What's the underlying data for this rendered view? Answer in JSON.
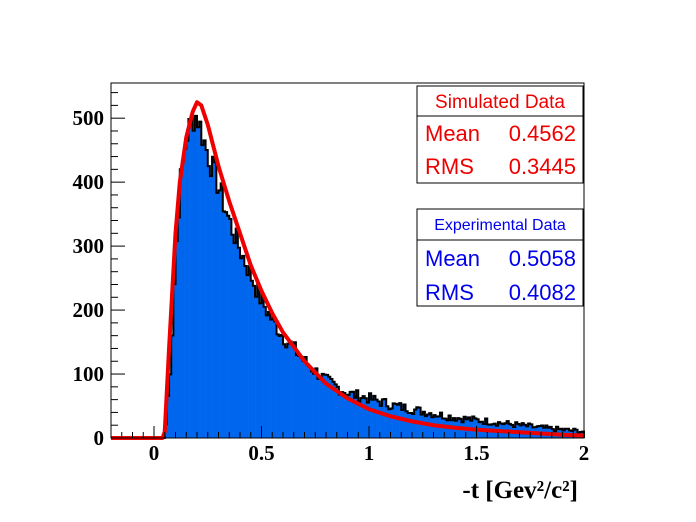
{
  "chart_data": {
    "type": "histogram",
    "xlabel": "-t [Gev²/c²]",
    "ylabel": "",
    "xlim": [
      -0.2,
      2.0
    ],
    "ylim": [
      0,
      555
    ],
    "x_ticks": [
      "0",
      "0.5",
      "1",
      "1.5",
      "2"
    ],
    "y_ticks": [
      "0",
      "100",
      "200",
      "300",
      "400",
      "500"
    ],
    "grid": false,
    "series": [
      {
        "name": "Experimental Data",
        "render": "filled-histogram",
        "fill_color": "#0066ee",
        "line_color": "#000000",
        "stats": {
          "mean_label": "Mean",
          "mean": "0.5058",
          "rms_label": "RMS",
          "rms": "0.4082"
        },
        "x": [
          0.0,
          0.05,
          0.08,
          0.1,
          0.12,
          0.15,
          0.18,
          0.2,
          0.22,
          0.25,
          0.3,
          0.35,
          0.4,
          0.45,
          0.5,
          0.55,
          0.6,
          0.7,
          0.8,
          0.9,
          1.0,
          1.1,
          1.2,
          1.3,
          1.4,
          1.5,
          1.6,
          1.7,
          1.8,
          1.9,
          2.0
        ],
        "values": [
          0,
          0,
          130,
          280,
          390,
          470,
          500,
          505,
          480,
          445,
          395,
          340,
          295,
          255,
          215,
          185,
          160,
          120,
          90,
          70,
          62,
          52,
          45,
          38,
          32,
          28,
          24,
          20,
          16,
          13,
          10
        ]
      },
      {
        "name": "Simulated Data",
        "render": "line",
        "line_color": "#ee0000",
        "stats": {
          "mean_label": "Mean",
          "mean": "0.4562",
          "rms_label": "RMS",
          "rms": "0.3445"
        },
        "x": [
          -0.2,
          0.04,
          0.05,
          0.07,
          0.09,
          0.1,
          0.12,
          0.15,
          0.18,
          0.2,
          0.22,
          0.25,
          0.3,
          0.35,
          0.4,
          0.45,
          0.5,
          0.55,
          0.6,
          0.7,
          0.8,
          0.9,
          1.0,
          1.1,
          1.2,
          1.3,
          1.4,
          1.5,
          1.6,
          1.7,
          1.8,
          1.9,
          2.0
        ],
        "values": [
          0,
          0,
          10,
          140,
          260,
          320,
          400,
          470,
          510,
          525,
          520,
          490,
          425,
          370,
          320,
          270,
          230,
          195,
          165,
          120,
          85,
          62,
          45,
          34,
          26,
          20,
          16,
          13,
          11,
          9,
          7,
          5,
          4
        ]
      }
    ]
  }
}
